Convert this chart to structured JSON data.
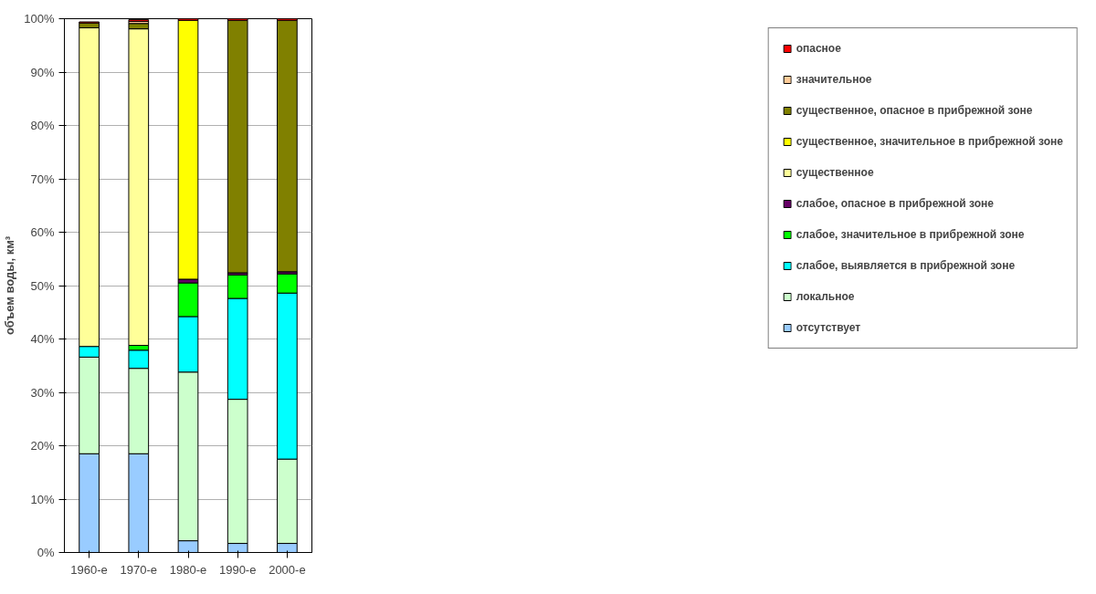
{
  "chart_data": {
    "type": "bar",
    "stacked": true,
    "ylabel": "объем воды, км³",
    "categories": [
      "1960-е",
      "1970-е",
      "1980-е",
      "1990-е",
      "2000-е"
    ],
    "series": [
      {
        "name": "отсутствует",
        "color": "#99ccff",
        "values": [
          18.5,
          18.5,
          2.2,
          1.7,
          1.7
        ]
      },
      {
        "name": "локальное",
        "color": "#ccffcc",
        "values": [
          18.1,
          16.0,
          31.6,
          27.0,
          15.8
        ]
      },
      {
        "name": "слабое, выявляется в прибрежной зоне",
        "color": "#00ffff",
        "values": [
          2.0,
          3.4,
          10.4,
          18.9,
          31.1
        ]
      },
      {
        "name": "слабое, значительное в прибрежной зоне",
        "color": "#00ff00",
        "values": [
          0,
          0.9,
          6.3,
          4.4,
          3.6
        ]
      },
      {
        "name": "слабое, опасное в прибрежной зоне",
        "color": "#660066",
        "values": [
          null,
          null,
          0.7,
          0.4,
          0.4
        ]
      },
      {
        "name": "существенное",
        "color": "#ffff99",
        "values": [
          59.7,
          59.3,
          0,
          0,
          0
        ]
      },
      {
        "name": "существенное, значительное в прибрежной зоне",
        "color": "#ffff00",
        "values": [
          0,
          0,
          48.5,
          0,
          0
        ]
      },
      {
        "name": "существенное, опасное в прибрежной зоне",
        "color": "#808000",
        "values": [
          0.9,
          1.0,
          0,
          47.3,
          47.1
        ]
      },
      {
        "name": "значительное",
        "color": "#ffcc99",
        "values": [
          null,
          0.4,
          0,
          0,
          0
        ]
      },
      {
        "name": "опасное",
        "color": "#ff0000",
        "values": [
          0.2,
          0.3,
          0.3,
          0.3,
          0.3
        ]
      }
    ],
    "ylim": [
      0,
      100
    ],
    "yticks": [
      {
        "value": 0,
        "label": "0%"
      },
      {
        "value": 10,
        "label": "10%"
      },
      {
        "value": 20,
        "label": "20%"
      },
      {
        "value": 30,
        "label": "30%"
      },
      {
        "value": 40,
        "label": "40%"
      },
      {
        "value": 50,
        "label": "50%"
      },
      {
        "value": 60,
        "label": "60%"
      },
      {
        "value": 70,
        "label": "70%"
      },
      {
        "value": 80,
        "label": "80%"
      },
      {
        "value": 90,
        "label": "90%"
      },
      {
        "value": 100,
        "label": "100%"
      }
    ],
    "grid": "y",
    "legend": "right"
  }
}
